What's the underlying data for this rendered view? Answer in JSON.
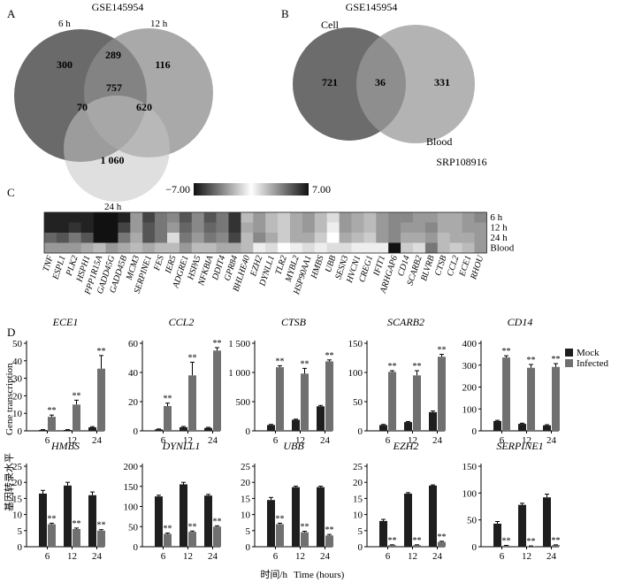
{
  "panel_labels": {
    "a": "A",
    "b": "B",
    "c": "C",
    "d": "D"
  },
  "venn_a": {
    "title": "GSE145954",
    "set_labels": [
      "6 h",
      "12 h",
      "24 h"
    ],
    "regions": {
      "only_6h": "300",
      "only_12h": "116",
      "only_24h": "1 060",
      "6h_12h": "289",
      "6h_24h": "70",
      "12h_24h": "620",
      "all_three": "757"
    },
    "colors": [
      "#5a5a5a",
      "#8c8c8c",
      "#c4c4c4"
    ]
  },
  "venn_b": {
    "title": "GSE145954",
    "subtitle": "SRP108916",
    "set_labels": [
      "Cell",
      "Blood"
    ],
    "regions": {
      "only_cell": "721",
      "both": "36",
      "only_blood": "331"
    },
    "colors": [
      "#5c5c5c",
      "#9a9a9a"
    ]
  },
  "heatmap": {
    "scale_min": "−7.00",
    "scale_max": "7.00",
    "rows": [
      "6 h",
      "12 h",
      "24 h",
      "Blood"
    ],
    "genes": [
      "TNF",
      "ESPL1",
      "PLK2",
      "HSPH1",
      "PPP1R15A",
      "GADD45G",
      "GADD45B",
      "MCM3",
      "SERPINE1",
      "FES",
      "IER5",
      "ADGRE1",
      "HSPA5",
      "NFKBIA",
      "DDIT4",
      "GPR84",
      "BHLHE40",
      "EZH2",
      "DYNLL1",
      "TLR2",
      "MYBL2",
      "HSP90AA1",
      "HMBS",
      "UBB",
      "SESN3",
      "HVCN1",
      "CREG1",
      "IFIT1",
      "ARHGAP6",
      "CD14",
      "SCARB2",
      "BLVRB",
      "CTSB",
      "CCL2",
      "ECE1",
      "RHOU"
    ],
    "values": [
      [
        -6.5,
        -6.5,
        -6.5,
        -6.5,
        -7,
        -7,
        -6.5,
        -3,
        -5.5,
        -4,
        -3.5,
        -5,
        -3.5,
        -5,
        -4,
        -6,
        -2,
        -3,
        -2,
        -1.5,
        -2.5,
        -3,
        -2,
        -1,
        -3,
        -2.5,
        -2,
        -3,
        -3.5,
        -3.5,
        -3,
        -3,
        -2.5,
        -2.5,
        -3,
        -3.5
      ],
      [
        -6.5,
        -6.5,
        -6,
        -6.5,
        -7,
        -7,
        -5.5,
        -3,
        -5,
        -4,
        -3,
        -4.5,
        -3.5,
        -4.5,
        -4,
        -6,
        -2.5,
        -3,
        -2,
        -1.5,
        -2.5,
        -3,
        -2,
        -0.5,
        -3,
        -2.5,
        -2,
        -3,
        -3.5,
        -3,
        -3,
        -3.5,
        -2.5,
        -2.5,
        -3,
        -3
      ],
      [
        -4.5,
        -5,
        -4,
        -5,
        -7,
        -7,
        -4,
        -2.5,
        -5,
        -4,
        1,
        -4,
        -3,
        -4,
        -3.5,
        -5.5,
        -2,
        -3.5,
        -2.5,
        -1.5,
        -2.5,
        -2.5,
        -1.5,
        0,
        -2.5,
        -2,
        -1.5,
        -3,
        -3.5,
        -2.5,
        -2.5,
        -3,
        -2,
        -2.5,
        -2.5,
        -3
      ],
      [
        -3,
        -3,
        -3,
        -2.5,
        -2,
        -3,
        -2.5,
        -2,
        -2.5,
        -2,
        -2,
        -3,
        -2,
        -2,
        -2.5,
        -2.5,
        -2,
        -0.5,
        -1,
        0,
        -0.5,
        -1,
        -0.5,
        1,
        -1,
        -0.5,
        0.5,
        0.5,
        -7,
        -1.5,
        -1,
        -4,
        -2,
        -1.5,
        -2,
        -3
      ]
    ]
  },
  "bar_panels": {
    "legend": [
      "Mock",
      "Infected"
    ],
    "series_colors": [
      "#1e1e1e",
      "#707070"
    ],
    "x_tick_labels": [
      "6",
      "12",
      "24"
    ],
    "ylabel_cn": "基因转录水平",
    "ylabel_en": "Gene transcription",
    "xlabel_cn": "时间/h",
    "xlabel_en": "Time (hours)",
    "significance_mark": "**"
  },
  "chart_data": [
    {
      "type": "bar",
      "title": "ECE1",
      "x": [
        6,
        12,
        24
      ],
      "ylim": [
        0,
        50
      ],
      "yticks": [
        "0",
        "10",
        "20",
        "30",
        "40",
        "50"
      ],
      "series": [
        {
          "name": "Mock",
          "values": [
            0.5,
            0.5,
            2
          ]
        },
        {
          "name": "Infected",
          "values": [
            8,
            15,
            35.5
          ]
        }
      ],
      "errors": [
        [
          0.2,
          0.2,
          0.4
        ],
        [
          1,
          2.5,
          7.5
        ]
      ]
    },
    {
      "type": "bar",
      "title": "CCL2",
      "x": [
        6,
        12,
        24
      ],
      "ylim": [
        0,
        60
      ],
      "yticks": [
        "0",
        "20",
        "40",
        "60"
      ],
      "series": [
        {
          "name": "Mock",
          "values": [
            1,
            2.5,
            2
          ]
        },
        {
          "name": "Infected",
          "values": [
            17,
            38,
            55
          ]
        }
      ],
      "errors": [
        [
          0.3,
          0.5,
          0.4
        ],
        [
          2,
          9,
          2
        ]
      ]
    },
    {
      "type": "bar",
      "title": "CTSB",
      "x": [
        6,
        12,
        24
      ],
      "ylim": [
        0,
        1500
      ],
      "yticks": [
        "0",
        "500",
        "1 000",
        "1 500"
      ],
      "series": [
        {
          "name": "Mock",
          "values": [
            100,
            190,
            420
          ]
        },
        {
          "name": "Infected",
          "values": [
            1090,
            980,
            1190
          ]
        }
      ],
      "errors": [
        [
          10,
          10,
          15
        ],
        [
          25,
          90,
          25
        ]
      ]
    },
    {
      "type": "bar",
      "title": "SCARB2",
      "x": [
        6,
        12,
        24
      ],
      "ylim": [
        0,
        150
      ],
      "yticks": [
        "0",
        "50",
        "100",
        "150"
      ],
      "series": [
        {
          "name": "Mock",
          "values": [
            10,
            15,
            32
          ]
        },
        {
          "name": "Infected",
          "values": [
            101,
            95,
            127
          ]
        }
      ],
      "errors": [
        [
          1,
          1,
          2
        ],
        [
          2,
          8,
          4
        ]
      ]
    },
    {
      "type": "bar",
      "title": "CD14",
      "x": [
        6,
        12,
        24
      ],
      "ylim": [
        0,
        400
      ],
      "yticks": [
        "0",
        "100",
        "200",
        "300",
        "400"
      ],
      "series": [
        {
          "name": "Mock",
          "values": [
            45,
            32,
            25
          ]
        },
        {
          "name": "Infected",
          "values": [
            335,
            288,
            292
          ]
        }
      ],
      "errors": [
        [
          3,
          3,
          3
        ],
        [
          8,
          15,
          15
        ]
      ]
    },
    {
      "type": "bar",
      "title": "HMBS",
      "x": [
        6,
        12,
        24
      ],
      "ylim": [
        0,
        25
      ],
      "yticks": [
        "0",
        "5",
        "10",
        "15",
        "20",
        "25"
      ],
      "series": [
        {
          "name": "Mock",
          "values": [
            16.5,
            19,
            16
          ]
        },
        {
          "name": "Infected",
          "values": [
            7,
            5.5,
            5
          ]
        }
      ],
      "errors": [
        [
          1,
          1,
          1
        ],
        [
          0.3,
          0.3,
          0.3
        ]
      ]
    },
    {
      "type": "bar",
      "title": "DYNLL1",
      "x": [
        6,
        12,
        24
      ],
      "ylim": [
        0,
        200
      ],
      "yticks": [
        "0",
        "50",
        "100",
        "150",
        "200"
      ],
      "series": [
        {
          "name": "Mock",
          "values": [
            125,
            155,
            127
          ]
        },
        {
          "name": "Infected",
          "values": [
            32,
            37,
            50
          ]
        }
      ],
      "errors": [
        [
          3,
          5,
          3
        ],
        [
          2,
          2,
          2
        ]
      ]
    },
    {
      "type": "bar",
      "title": "UBB",
      "x": [
        6,
        12,
        24
      ],
      "ylim": [
        0,
        25
      ],
      "yticks": [
        "0",
        "5",
        "10",
        "15",
        "20",
        "25"
      ],
      "series": [
        {
          "name": "Mock",
          "values": [
            14.5,
            18.5,
            18.5
          ]
        },
        {
          "name": "Infected",
          "values": [
            7,
            4.5,
            3.5
          ]
        }
      ],
      "errors": [
        [
          0.8,
          0.3,
          0.3
        ],
        [
          0.3,
          0.3,
          0.3
        ]
      ]
    },
    {
      "type": "bar",
      "title": "EZH2",
      "x": [
        6,
        12,
        24
      ],
      "ylim": [
        0,
        25
      ],
      "yticks": [
        "0",
        "5",
        "10",
        "15",
        "20",
        "25"
      ],
      "series": [
        {
          "name": "Mock",
          "values": [
            8,
            16.5,
            19
          ]
        },
        {
          "name": "Infected",
          "values": [
            0.5,
            0.5,
            1.5
          ]
        }
      ],
      "errors": [
        [
          0.5,
          0.3,
          0.2
        ],
        [
          0.1,
          0.1,
          0.2
        ]
      ]
    },
    {
      "type": "bar",
      "title": "SERPINE1",
      "x": [
        6,
        12,
        24
      ],
      "ylim": [
        0,
        150
      ],
      "yticks": [
        "0",
        "50",
        "100",
        "150"
      ],
      "series": [
        {
          "name": "Mock",
          "values": [
            43,
            78,
            92
          ]
        },
        {
          "name": "Infected",
          "values": [
            2,
            1,
            3
          ]
        }
      ],
      "errors": [
        [
          4,
          3,
          6
        ],
        [
          0.5,
          0.5,
          0.5
        ]
      ]
    }
  ]
}
